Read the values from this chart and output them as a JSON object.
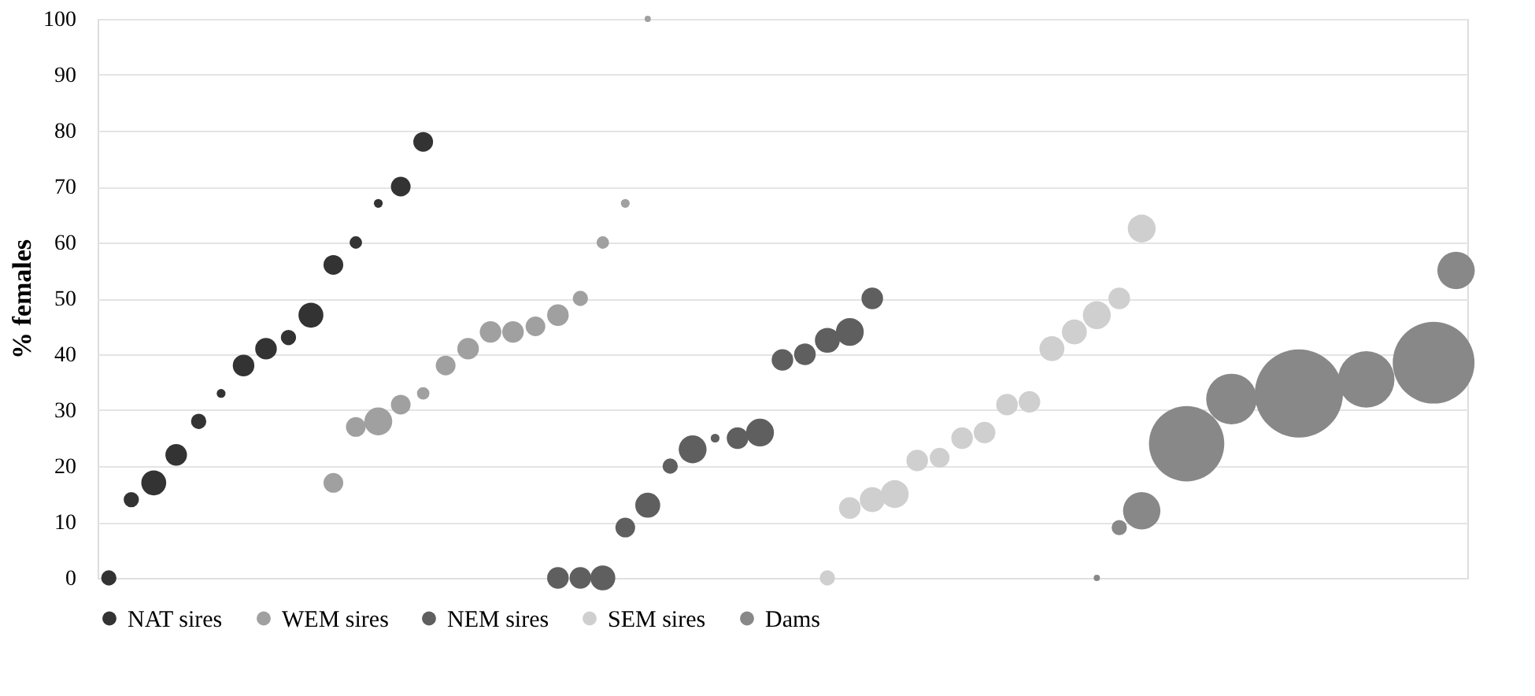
{
  "chart_data": {
    "type": "bubble",
    "ylabel": "% females",
    "ylim": [
      0,
      100
    ],
    "yticks": [
      0,
      10,
      20,
      30,
      40,
      50,
      60,
      70,
      80,
      90,
      100
    ],
    "grid": "y",
    "legend": "bottom",
    "tick_labels": "y",
    "marker": "circle",
    "categories": [
      null,
      null,
      null,
      null,
      null,
      null,
      null,
      null,
      null,
      null,
      null,
      null,
      null,
      null,
      null,
      null,
      null,
      null,
      null,
      null,
      null,
      null,
      null,
      null,
      null,
      null,
      null,
      null,
      null,
      null,
      null,
      null,
      null,
      null,
      null,
      null,
      null,
      null,
      null,
      null,
      null,
      null,
      null,
      null,
      null,
      null,
      null,
      null,
      null,
      null,
      null,
      null,
      null,
      null,
      null,
      null,
      null,
      null,
      null,
      null,
      null
    ],
    "series": [
      {
        "name": "NAT sires",
        "color": "#333333",
        "values": [
          0,
          14,
          17,
          22,
          28,
          33,
          38,
          41,
          43,
          47,
          56,
          60,
          67,
          70,
          78,
          null,
          null,
          null,
          null,
          null,
          null,
          null,
          null,
          null,
          null,
          null,
          null,
          null,
          null,
          null,
          null,
          null,
          null,
          null,
          null,
          null,
          null,
          null,
          null,
          null,
          null,
          null,
          null,
          null,
          null,
          null,
          null,
          null,
          null,
          null,
          null,
          null,
          null,
          null,
          null,
          null,
          null,
          null,
          null,
          null,
          null
        ],
        "sizes": [
          0.03,
          0.03,
          0.08,
          0.06,
          0.03,
          0.01,
          0.06,
          0.06,
          0.03,
          0.08,
          0.05,
          0.02,
          0.01,
          0.05,
          0.05,
          null,
          null,
          null,
          null,
          null,
          null,
          null,
          null,
          null,
          null,
          null,
          null,
          null,
          null,
          null,
          null,
          null,
          null,
          null,
          null,
          null,
          null,
          null,
          null,
          null,
          null,
          null,
          null,
          null,
          null,
          null,
          null,
          null,
          null,
          null,
          null,
          null,
          null,
          null,
          null,
          null,
          null,
          null,
          null,
          null,
          null
        ]
      },
      {
        "name": "WEM sires",
        "color": "#a0a0a0",
        "values": [
          null,
          null,
          null,
          null,
          null,
          null,
          null,
          null,
          null,
          null,
          17,
          27,
          28,
          31,
          33,
          38,
          41,
          44,
          44,
          45,
          47,
          50,
          60,
          67,
          100,
          null,
          null,
          null,
          null,
          null,
          null,
          null,
          null,
          null,
          null,
          null,
          null,
          null,
          null,
          null,
          null,
          null,
          null,
          null,
          null,
          null,
          null,
          null,
          null,
          null,
          null,
          null,
          null,
          null,
          null,
          null,
          null,
          null,
          null,
          null,
          null
        ],
        "sizes": [
          null,
          null,
          null,
          null,
          null,
          null,
          null,
          null,
          null,
          null,
          0.05,
          0.05,
          0.1,
          0.05,
          0.02,
          0.05,
          0.06,
          0.06,
          0.06,
          0.05,
          0.06,
          0.03,
          0.02,
          0.01,
          0.005,
          null,
          null,
          null,
          null,
          null,
          null,
          null,
          null,
          null,
          null,
          null,
          null,
          null,
          null,
          null,
          null,
          null,
          null,
          null,
          null,
          null,
          null,
          null,
          null,
          null,
          null,
          null,
          null,
          null,
          null,
          null,
          null,
          null,
          null,
          null,
          null
        ]
      },
      {
        "name": "NEM sires",
        "color": "#5f5f5f",
        "values": [
          null,
          null,
          null,
          null,
          null,
          null,
          null,
          null,
          null,
          null,
          null,
          null,
          null,
          null,
          null,
          null,
          null,
          null,
          null,
          null,
          0,
          0,
          0,
          9,
          13,
          20,
          23,
          25,
          25,
          26,
          39,
          40,
          42.5,
          44,
          50,
          null,
          null,
          null,
          null,
          null,
          null,
          null,
          null,
          null,
          null,
          null,
          null,
          null,
          null,
          null,
          null,
          null,
          null,
          null,
          null,
          null,
          null,
          null,
          null,
          null,
          null
        ],
        "sizes": [
          null,
          null,
          null,
          null,
          null,
          null,
          null,
          null,
          null,
          null,
          null,
          null,
          null,
          null,
          null,
          null,
          null,
          null,
          null,
          null,
          0.06,
          0.06,
          0.08,
          0.05,
          0.08,
          0.03,
          0.1,
          0.01,
          0.06,
          0.1,
          0.06,
          0.06,
          0.08,
          0.1,
          0.06,
          null,
          null,
          null,
          null,
          null,
          null,
          null,
          null,
          null,
          null,
          null,
          null,
          null,
          null,
          null,
          null,
          null,
          null,
          null,
          null,
          null,
          null,
          null,
          null,
          null,
          null
        ]
      },
      {
        "name": "SEM sires",
        "color": "#cfcfcf",
        "values": [
          null,
          null,
          null,
          null,
          null,
          null,
          null,
          null,
          null,
          null,
          null,
          null,
          null,
          null,
          null,
          null,
          null,
          null,
          null,
          null,
          null,
          null,
          null,
          null,
          null,
          null,
          null,
          null,
          null,
          null,
          null,
          null,
          0,
          12.5,
          14,
          15,
          21,
          21.5,
          25,
          26,
          31,
          31.5,
          41,
          44,
          47,
          50,
          62.5,
          null,
          null,
          null,
          null,
          null,
          null,
          null,
          null,
          null,
          null,
          null,
          null,
          null,
          null
        ],
        "sizes": [
          null,
          null,
          null,
          null,
          null,
          null,
          null,
          null,
          null,
          null,
          null,
          null,
          null,
          null,
          null,
          null,
          null,
          null,
          null,
          null,
          null,
          null,
          null,
          null,
          null,
          null,
          null,
          null,
          null,
          null,
          null,
          null,
          0.03,
          0.06,
          0.08,
          0.1,
          0.06,
          0.05,
          0.06,
          0.06,
          0.06,
          0.06,
          0.08,
          0.08,
          0.1,
          0.06,
          0.1,
          null,
          null,
          null,
          null,
          null,
          null,
          null,
          null,
          null,
          null,
          null,
          null,
          null,
          null
        ]
      },
      {
        "name": "Dams",
        "color": "#888888",
        "values": [
          null,
          null,
          null,
          null,
          null,
          null,
          null,
          null,
          null,
          null,
          null,
          null,
          null,
          null,
          null,
          null,
          null,
          null,
          null,
          null,
          null,
          null,
          null,
          null,
          null,
          null,
          null,
          null,
          null,
          null,
          null,
          null,
          null,
          null,
          null,
          null,
          null,
          null,
          null,
          null,
          null,
          null,
          null,
          null,
          0,
          9,
          12,
          null,
          24,
          null,
          32,
          null,
          null,
          33,
          null,
          null,
          35.5,
          null,
          null,
          38.5,
          55
        ],
        "sizes": [
          null,
          null,
          null,
          null,
          null,
          null,
          null,
          null,
          null,
          null,
          null,
          null,
          null,
          null,
          null,
          null,
          null,
          null,
          null,
          null,
          null,
          null,
          null,
          null,
          null,
          null,
          null,
          null,
          null,
          null,
          null,
          null,
          null,
          null,
          null,
          null,
          null,
          null,
          null,
          null,
          null,
          null,
          null,
          null,
          0.005,
          0.03,
          0.18,
          null,
          0.73,
          null,
          0.33,
          null,
          null,
          1,
          null,
          null,
          0.41,
          null,
          null,
          0.86,
          0.18
        ]
      }
    ]
  }
}
